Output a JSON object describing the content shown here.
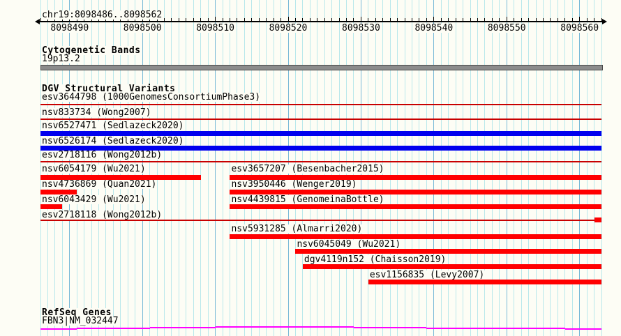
{
  "title": "chr19:8098486..8098562",
  "colors": {
    "background": "#fdfdf5",
    "text": "#000000",
    "grid_minor": "#b9e8eb",
    "grid_major": "#78b9d7",
    "bar_red": "#ff0000",
    "line_red": "#c80000",
    "bar_blue": "#0000ee",
    "band_gray": "#8c8c8c",
    "band_border": "#484848",
    "gene_magenta": "#ff00ff"
  },
  "chart_data": {
    "type": "genome-tracks",
    "region": {
      "chrom": "chr19",
      "start": 8098486,
      "end": 8098562
    },
    "view": {
      "start": 8098486,
      "end": 8098563
    },
    "ruler": {
      "major_ticks": [
        8098490,
        8098500,
        8098510,
        8098520,
        8098530,
        8098540,
        8098550,
        8098560
      ],
      "minor_tick_interval": 1
    },
    "tracks": [
      {
        "id": "cytobands",
        "header": "Cytogenetic Bands",
        "items": [
          {
            "label": "19p13.2",
            "shape": "band",
            "start": 8098486,
            "end": 8098563
          }
        ]
      },
      {
        "id": "dgv",
        "header": "DGV Structural Variants",
        "items": [
          {
            "id": "esv3644798",
            "study": "1000GenomesConsortiumPhase3",
            "row": 0,
            "color": "red",
            "segments": [
              {
                "start": 8098486,
                "end": 8098563,
                "style": "thin"
              }
            ]
          },
          {
            "id": "nsv833734",
            "study": "Wong2007",
            "row": 1,
            "color": "red",
            "segments": [
              {
                "start": 8098486,
                "end": 8098563,
                "style": "thin"
              }
            ]
          },
          {
            "id": "nsv6527471",
            "study": "Sedlazeck2020",
            "row": 2,
            "color": "blue",
            "segments": [
              {
                "start": 8098486,
                "end": 8098563,
                "style": "thick"
              }
            ]
          },
          {
            "id": "nsv6526174",
            "study": "Sedlazeck2020",
            "row": 3,
            "color": "blue",
            "segments": [
              {
                "start": 8098486,
                "end": 8098563,
                "style": "thick"
              }
            ]
          },
          {
            "id": "esv2718116",
            "study": "Wong2012b",
            "row": 4,
            "color": "red",
            "segments": [
              {
                "start": 8098486,
                "end": 8098563,
                "style": "thin"
              }
            ]
          },
          {
            "id": "nsv6054179",
            "study": "Wu2021",
            "row": 5,
            "color": "red",
            "segments": [
              {
                "start": 8098486,
                "end": 8098508,
                "style": "thick"
              }
            ]
          },
          {
            "id": "esv3657207",
            "study": "Besenbacher2015",
            "row": 5,
            "color": "red",
            "segments": [
              {
                "start": 8098512,
                "end": 8098563,
                "style": "thick"
              }
            ]
          },
          {
            "id": "nsv4736869",
            "study": "Quan2021",
            "row": 6,
            "color": "red",
            "segments": [
              {
                "start": 8098486,
                "end": 8098491,
                "style": "thick"
              }
            ]
          },
          {
            "id": "nsv3950446",
            "study": "Wenger2019",
            "row": 6,
            "color": "red",
            "segments": [
              {
                "start": 8098512,
                "end": 8098563,
                "style": "thick"
              }
            ]
          },
          {
            "id": "nsv6043429",
            "study": "Wu2021",
            "row": 7,
            "color": "red",
            "segments": [
              {
                "start": 8098486,
                "end": 8098489,
                "style": "thick"
              }
            ]
          },
          {
            "id": "nsv4439815",
            "study": "GenomeinaBottle",
            "row": 7,
            "color": "red",
            "segments": [
              {
                "start": 8098512,
                "end": 8098563,
                "style": "thick"
              }
            ]
          },
          {
            "id": "esv2718118",
            "study": "Wong2012b",
            "row": 8,
            "color": "red",
            "segments": [
              {
                "start": 8098486,
                "end": 8098562,
                "style": "thin"
              },
              {
                "start": 8098562,
                "end": 8098563,
                "style": "thick"
              }
            ]
          },
          {
            "id": "nsv5931285",
            "study": "Almarri2020",
            "row": 9,
            "color": "red",
            "segments": [
              {
                "start": 8098512,
                "end": 8098563,
                "style": "thick"
              }
            ]
          },
          {
            "id": "nsv6045049",
            "study": "Wu2021",
            "row": 10,
            "color": "red",
            "segments": [
              {
                "start": 8098521,
                "end": 8098563,
                "style": "thick"
              }
            ]
          },
          {
            "id": "dgv4119n152",
            "study": "Chaisson2019",
            "row": 11,
            "color": "red",
            "segments": [
              {
                "start": 8098522,
                "end": 8098563,
                "style": "thick"
              }
            ]
          },
          {
            "id": "esv1156835",
            "study": "Levy2007",
            "row": 12,
            "color": "red",
            "segments": [
              {
                "start": 8098531,
                "end": 8098563,
                "style": "thick"
              }
            ]
          }
        ]
      },
      {
        "id": "refseq",
        "header": "RefSeq Genes",
        "items": [
          {
            "label": "FBN3|NM_032447",
            "shape": "gene-line",
            "segments": [
              {
                "start": 8098486,
                "end": 8098491,
                "level": 0
              },
              {
                "start": 8098491,
                "end": 8098501,
                "level": 1
              },
              {
                "start": 8098501,
                "end": 8098510,
                "level": 2
              },
              {
                "start": 8098510,
                "end": 8098529,
                "level": 3
              },
              {
                "start": 8098529,
                "end": 8098539,
                "level": 2
              },
              {
                "start": 8098539,
                "end": 8098548,
                "level": 1
              },
              {
                "start": 8098548,
                "end": 8098558,
                "level": 1
              },
              {
                "start": 8098558,
                "end": 8098563,
                "level": 0
              }
            ]
          }
        ]
      }
    ]
  }
}
